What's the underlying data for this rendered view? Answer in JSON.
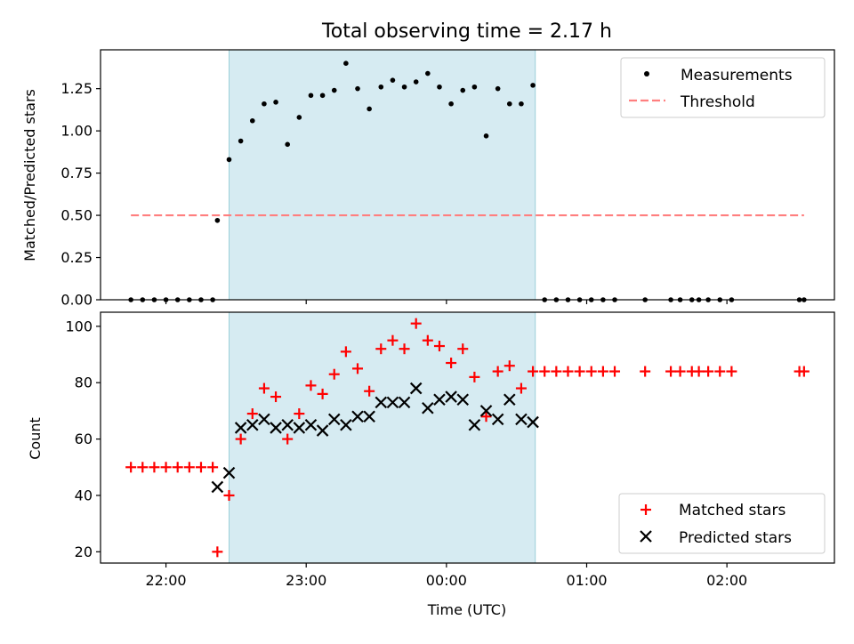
{
  "chart_data": [
    {
      "type": "scatter",
      "title": "Total observing time = 2.17 h",
      "xlabel": "",
      "ylabel": "Matched/Predicted stars",
      "xlim": [
        "21:32",
        "02:46"
      ],
      "ylim": [
        0,
        1.48
      ],
      "yticks": [
        0.0,
        0.25,
        0.5,
        0.75,
        1.0,
        1.25
      ],
      "ytick_labels": [
        "0.00",
        "0.25",
        "0.50",
        "0.75",
        "1.00",
        "1.25"
      ],
      "shaded_region": {
        "start": "22:27",
        "end": "00:38"
      },
      "legend": {
        "position": "upper right",
        "entries": [
          "Measurements",
          "Threshold"
        ]
      },
      "series": [
        {
          "name": "Measurements",
          "marker": "dot",
          "color": "#000000",
          "x": [
            "21:45",
            "21:50",
            "21:55",
            "22:00",
            "22:05",
            "22:10",
            "22:15",
            "22:20",
            "22:22",
            "22:27",
            "22:32",
            "22:37",
            "22:42",
            "22:47",
            "22:52",
            "22:57",
            "23:02",
            "23:07",
            "23:12",
            "23:17",
            "23:22",
            "23:27",
            "23:32",
            "23:37",
            "23:42",
            "23:47",
            "23:52",
            "23:57",
            "00:02",
            "00:07",
            "00:12",
            "00:17",
            "00:22",
            "00:27",
            "00:32",
            "00:37",
            "00:42",
            "00:47",
            "00:52",
            "00:57",
            "01:02",
            "01:07",
            "01:12",
            "01:25",
            "01:36",
            "01:40",
            "01:45",
            "01:48",
            "01:52",
            "01:57",
            "02:02",
            "02:31",
            "02:33"
          ],
          "y": [
            0,
            0,
            0,
            0,
            0,
            0,
            0,
            0,
            0.47,
            0.83,
            0.94,
            1.06,
            1.16,
            1.17,
            0.92,
            1.08,
            1.21,
            1.21,
            1.24,
            1.4,
            1.25,
            1.13,
            1.26,
            1.3,
            1.26,
            1.29,
            1.34,
            1.26,
            1.16,
            1.24,
            1.26,
            0.97,
            1.25,
            1.16,
            1.16,
            1.27,
            0,
            0,
            0,
            0,
            0,
            0,
            0,
            0,
            0,
            0,
            0,
            0,
            0,
            0,
            0,
            0,
            0
          ]
        },
        {
          "name": "Threshold",
          "marker": "dashed-line",
          "color": "#ff7f7f",
          "x": [
            "21:45",
            "02:33"
          ],
          "y": [
            0.5,
            0.5
          ]
        }
      ]
    },
    {
      "type": "scatter",
      "title": "",
      "xlabel": "Time (UTC)",
      "ylabel": "Count",
      "xlim": [
        "21:32",
        "02:46"
      ],
      "ylim": [
        16,
        105
      ],
      "yticks": [
        20,
        40,
        60,
        80,
        100
      ],
      "ytick_labels": [
        "20",
        "40",
        "60",
        "80",
        "100"
      ],
      "xticks": [
        "22:00",
        "23:00",
        "00:00",
        "01:00",
        "02:00"
      ],
      "shaded_region": {
        "start": "22:27",
        "end": "00:38"
      },
      "legend": {
        "position": "lower right",
        "entries": [
          "Matched stars",
          "Predicted stars"
        ]
      },
      "series": [
        {
          "name": "Matched stars",
          "marker": "plus",
          "color": "#ff0000",
          "x": [
            "21:45",
            "21:50",
            "21:55",
            "22:00",
            "22:05",
            "22:10",
            "22:15",
            "22:20",
            "22:22",
            "22:27",
            "22:32",
            "22:37",
            "22:42",
            "22:47",
            "22:52",
            "22:57",
            "23:02",
            "23:07",
            "23:12",
            "23:17",
            "23:22",
            "23:27",
            "23:32",
            "23:37",
            "23:42",
            "23:47",
            "23:52",
            "23:57",
            "00:02",
            "00:07",
            "00:12",
            "00:17",
            "00:22",
            "00:27",
            "00:32",
            "00:37",
            "00:42",
            "00:47",
            "00:52",
            "00:57",
            "01:02",
            "01:07",
            "01:12",
            "01:25",
            "01:36",
            "01:40",
            "01:45",
            "01:48",
            "01:52",
            "01:57",
            "02:02",
            "02:31",
            "02:33"
          ],
          "y": [
            50,
            50,
            50,
            50,
            50,
            50,
            50,
            50,
            20,
            40,
            60,
            69,
            78,
            75,
            60,
            69,
            79,
            76,
            83,
            91,
            85,
            77,
            92,
            95,
            92,
            101,
            95,
            93,
            87,
            92,
            82,
            68,
            84,
            86,
            78,
            84,
            84,
            84,
            84,
            84,
            84,
            84,
            84,
            84,
            84,
            84,
            84,
            84,
            84,
            84,
            84,
            84,
            84
          ]
        },
        {
          "name": "Predicted stars",
          "marker": "x",
          "color": "#000000",
          "x": [
            "22:22",
            "22:27",
            "22:32",
            "22:37",
            "22:42",
            "22:47",
            "22:52",
            "22:57",
            "23:02",
            "23:07",
            "23:12",
            "23:17",
            "23:22",
            "23:27",
            "23:32",
            "23:37",
            "23:42",
            "23:47",
            "23:52",
            "23:57",
            "00:02",
            "00:07",
            "00:12",
            "00:17",
            "00:22",
            "00:27",
            "00:32",
            "00:37"
          ],
          "y": [
            43,
            48,
            64,
            65,
            67,
            64,
            65,
            64,
            65,
            63,
            67,
            65,
            68,
            68,
            73,
            73,
            73,
            78,
            71,
            74,
            75,
            74,
            65,
            70,
            67,
            74,
            67,
            66
          ]
        }
      ]
    }
  ]
}
